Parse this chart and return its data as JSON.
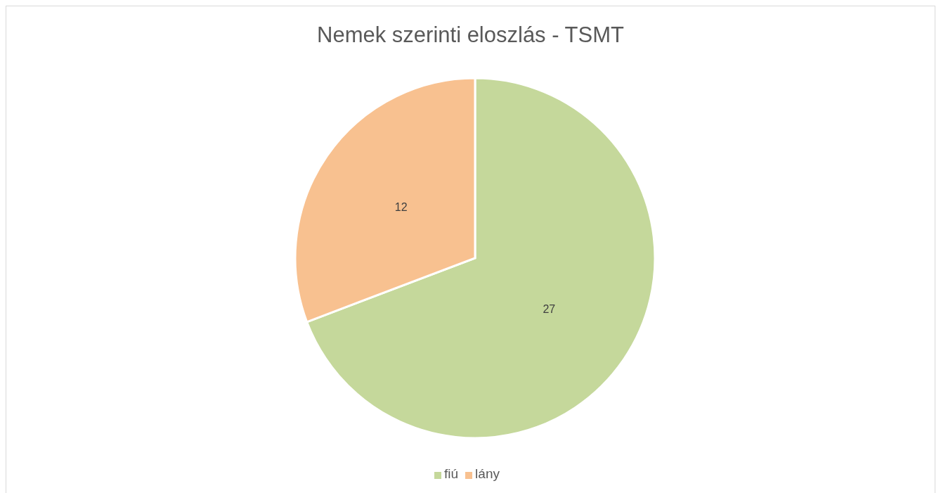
{
  "chart_data": {
    "type": "pie",
    "title": "Nemek szerinti eloszlás - TSMT",
    "categories": [
      "fiú",
      "lány"
    ],
    "values": [
      27,
      12
    ],
    "colors": [
      "#c5d89b",
      "#f8c190"
    ],
    "data_labels": true,
    "legend": "bottom"
  }
}
